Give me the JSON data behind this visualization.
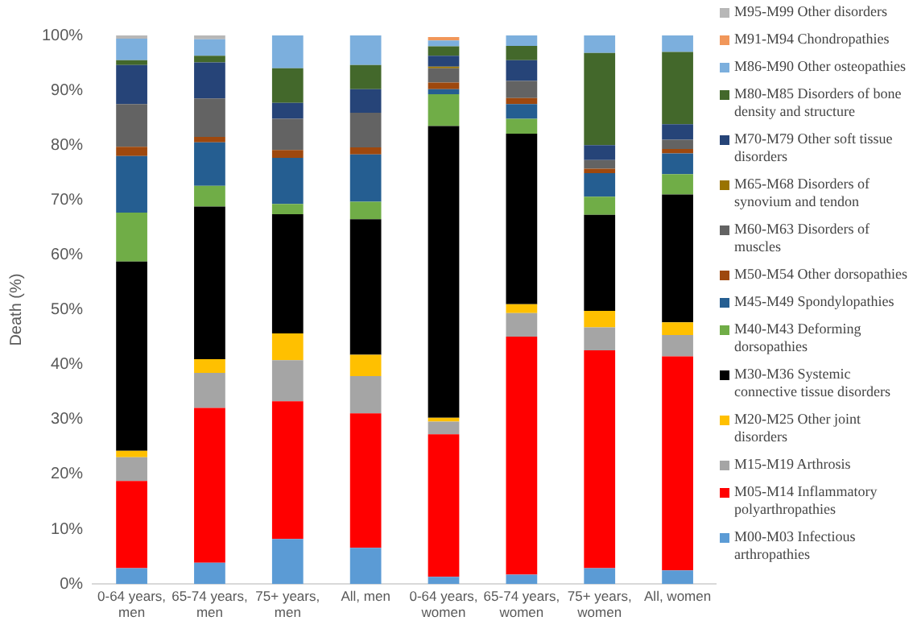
{
  "chart_data": {
    "type": "bar",
    "stacked": true,
    "ylabel": "Death (%)",
    "categories": [
      "0-64 years, men",
      "65-74 years, men",
      "75+ years, men",
      "All, men",
      "0-64 years, women",
      "65-74 years, women",
      "75+ years, women",
      "All, women"
    ],
    "ylim": [
      0,
      100
    ],
    "yticks": [
      {
        "value": 0,
        "label": "0%"
      },
      {
        "value": 10,
        "label": "10%"
      },
      {
        "value": 20,
        "label": "20%"
      },
      {
        "value": 30,
        "label": "30%"
      },
      {
        "value": 40,
        "label": "40%"
      },
      {
        "value": 50,
        "label": "50%"
      },
      {
        "value": 60,
        "label": "60%"
      },
      {
        "value": 70,
        "label": "70%"
      },
      {
        "value": 80,
        "label": "80%"
      },
      {
        "value": 90,
        "label": "90%"
      },
      {
        "value": 100,
        "label": "100%"
      }
    ],
    "grid": false,
    "legend": "right",
    "series": [
      {
        "name": "M00-M03 Infectious arthropathies",
        "color": "#5b9bd5",
        "values": [
          2.9,
          3.9,
          8.2,
          6.6,
          1.3,
          1.7,
          2.9,
          2.5
        ]
      },
      {
        "name": "M05-M14 Inflammatory polyarthropathies",
        "color": "#ff0000",
        "values": [
          15.9,
          28.2,
          25.1,
          24.5,
          26.0,
          43.4,
          39.7,
          39.0
        ]
      },
      {
        "name": "M15-M19 Arthrosis",
        "color": "#a5a5a5",
        "values": [
          4.3,
          6.4,
          7.5,
          6.8,
          2.3,
          4.3,
          4.2,
          3.9
        ]
      },
      {
        "name": "M20-M25 Other joint disorders",
        "color": "#ffc000",
        "values": [
          1.2,
          2.5,
          4.9,
          3.9,
          0.7,
          1.6,
          3.0,
          2.3
        ]
      },
      {
        "name": "M30-M36 Systemic connective tissue disorders",
        "color": "#000000",
        "values": [
          34.5,
          27.8,
          21.7,
          24.7,
          53.2,
          31.1,
          17.5,
          23.3
        ]
      },
      {
        "name": "M40-M43 Deforming dorsopathies",
        "color": "#70ad47",
        "values": [
          8.9,
          3.8,
          1.9,
          3.2,
          5.8,
          2.7,
          3.3,
          3.7
        ]
      },
      {
        "name": "M45-M49 Spondylopathies",
        "color": "#255e91",
        "values": [
          10.3,
          7.9,
          8.4,
          8.6,
          0.9,
          2.7,
          4.3,
          3.8
        ]
      },
      {
        "name": "M50-M54 Other dorsopathies",
        "color": "#9e480e",
        "values": [
          1.7,
          1.0,
          1.4,
          1.3,
          1.2,
          1.1,
          0.8,
          0.8
        ]
      },
      {
        "name": "M60-M63 Disorders of muscles",
        "color": "#636363",
        "values": [
          7.8,
          7.0,
          5.7,
          6.3,
          2.6,
          3.1,
          1.6,
          1.7
        ]
      },
      {
        "name": "M65-M68 Disorders of synovium and tendon",
        "color": "#997300",
        "values": [
          0,
          0,
          0,
          0,
          0.3,
          0,
          0,
          0
        ]
      },
      {
        "name": "M70-M79 Other soft tissue disorders",
        "color": "#264478",
        "values": [
          7.1,
          6.6,
          2.9,
          4.3,
          2.0,
          3.8,
          2.7,
          2.8
        ]
      },
      {
        "name": "M80-M85 Disorders of bone density and structure",
        "color": "#43682b",
        "values": [
          0.9,
          1.2,
          6.3,
          4.4,
          1.7,
          2.6,
          16.8,
          13.2
        ]
      },
      {
        "name": "M86-M90 Other osteopathies",
        "color": "#7cafdd",
        "values": [
          3.9,
          3.0,
          6.0,
          5.4,
          1.1,
          1.9,
          3.2,
          3.0
        ]
      },
      {
        "name": "M91-M94 Chondropathies",
        "color": "#f1975a",
        "values": [
          0,
          0,
          0,
          0,
          0.6,
          0,
          0,
          0
        ]
      },
      {
        "name": "M95-M99 Other disorders",
        "color": "#b7b7b7",
        "values": [
          0.6,
          0.7,
          0,
          0,
          null,
          0,
          0,
          0
        ]
      }
    ]
  }
}
